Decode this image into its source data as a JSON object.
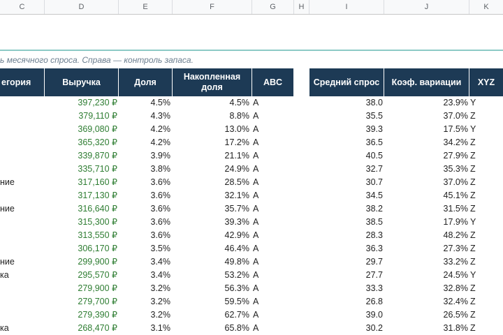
{
  "columns": [
    "C",
    "D",
    "E",
    "F",
    "G",
    "H",
    "I",
    "J",
    "K"
  ],
  "subtitle": "ь месячного спроса. Справа — контроль запаса.",
  "headers": {
    "category": "егория",
    "revenue": "Выручка",
    "share": "Доля",
    "cum_share": "Накопленная доля",
    "abc": "ABC",
    "avg_demand": "Средний спрос",
    "cv": "Коэф. вариации",
    "xyz": "XYZ"
  },
  "rows": [
    {
      "cat": "",
      "rev": "397,230 ₽",
      "share": "4.5%",
      "cum": "4.5%",
      "abc": "A",
      "avg": "38.0",
      "cv": "23.9%",
      "xyz": "Y"
    },
    {
      "cat": "",
      "rev": "379,110 ₽",
      "share": "4.3%",
      "cum": "8.8%",
      "abc": "A",
      "avg": "35.5",
      "cv": "37.0%",
      "xyz": "Z"
    },
    {
      "cat": "",
      "rev": "369,080 ₽",
      "share": "4.2%",
      "cum": "13.0%",
      "abc": "A",
      "avg": "39.3",
      "cv": "17.5%",
      "xyz": "Y"
    },
    {
      "cat": "",
      "rev": "365,320 ₽",
      "share": "4.2%",
      "cum": "17.2%",
      "abc": "A",
      "avg": "36.5",
      "cv": "34.2%",
      "xyz": "Z"
    },
    {
      "cat": "",
      "rev": "339,870 ₽",
      "share": "3.9%",
      "cum": "21.1%",
      "abc": "A",
      "avg": "40.5",
      "cv": "27.9%",
      "xyz": "Z"
    },
    {
      "cat": "",
      "rev": "335,710 ₽",
      "share": "3.8%",
      "cum": "24.9%",
      "abc": "A",
      "avg": "32.7",
      "cv": "35.3%",
      "xyz": "Z"
    },
    {
      "cat": "ние",
      "rev": "317,160 ₽",
      "share": "3.6%",
      "cum": "28.5%",
      "abc": "A",
      "avg": "30.7",
      "cv": "37.0%",
      "xyz": "Z"
    },
    {
      "cat": "",
      "rev": "317,130 ₽",
      "share": "3.6%",
      "cum": "32.1%",
      "abc": "A",
      "avg": "34.5",
      "cv": "45.1%",
      "xyz": "Z"
    },
    {
      "cat": "ние",
      "rev": "316,640 ₽",
      "share": "3.6%",
      "cum": "35.7%",
      "abc": "A",
      "avg": "38.2",
      "cv": "31.5%",
      "xyz": "Z"
    },
    {
      "cat": "",
      "rev": "315,300 ₽",
      "share": "3.6%",
      "cum": "39.3%",
      "abc": "A",
      "avg": "38.5",
      "cv": "17.9%",
      "xyz": "Y"
    },
    {
      "cat": "",
      "rev": "313,550 ₽",
      "share": "3.6%",
      "cum": "42.9%",
      "abc": "A",
      "avg": "28.3",
      "cv": "48.2%",
      "xyz": "Z"
    },
    {
      "cat": "",
      "rev": "306,170 ₽",
      "share": "3.5%",
      "cum": "46.4%",
      "abc": "A",
      "avg": "36.3",
      "cv": "27.3%",
      "xyz": "Z"
    },
    {
      "cat": "ние",
      "rev": "299,900 ₽",
      "share": "3.4%",
      "cum": "49.8%",
      "abc": "A",
      "avg": "29.7",
      "cv": "33.2%",
      "xyz": "Z"
    },
    {
      "cat": "ка",
      "rev": "295,570 ₽",
      "share": "3.4%",
      "cum": "53.2%",
      "abc": "A",
      "avg": "27.7",
      "cv": "24.5%",
      "xyz": "Y"
    },
    {
      "cat": "",
      "rev": "279,900 ₽",
      "share": "3.2%",
      "cum": "56.3%",
      "abc": "A",
      "avg": "33.3",
      "cv": "32.8%",
      "xyz": "Z"
    },
    {
      "cat": "",
      "rev": "279,700 ₽",
      "share": "3.2%",
      "cum": "59.5%",
      "abc": "A",
      "avg": "26.8",
      "cv": "32.4%",
      "xyz": "Z"
    },
    {
      "cat": "",
      "rev": "279,390 ₽",
      "share": "3.2%",
      "cum": "62.7%",
      "abc": "A",
      "avg": "39.0",
      "cv": "26.5%",
      "xyz": "Z"
    },
    {
      "cat": "ка",
      "rev": "268,470 ₽",
      "share": "3.1%",
      "cum": "65.8%",
      "abc": "A",
      "avg": "30.2",
      "cv": "31.8%",
      "xyz": "Z"
    }
  ]
}
